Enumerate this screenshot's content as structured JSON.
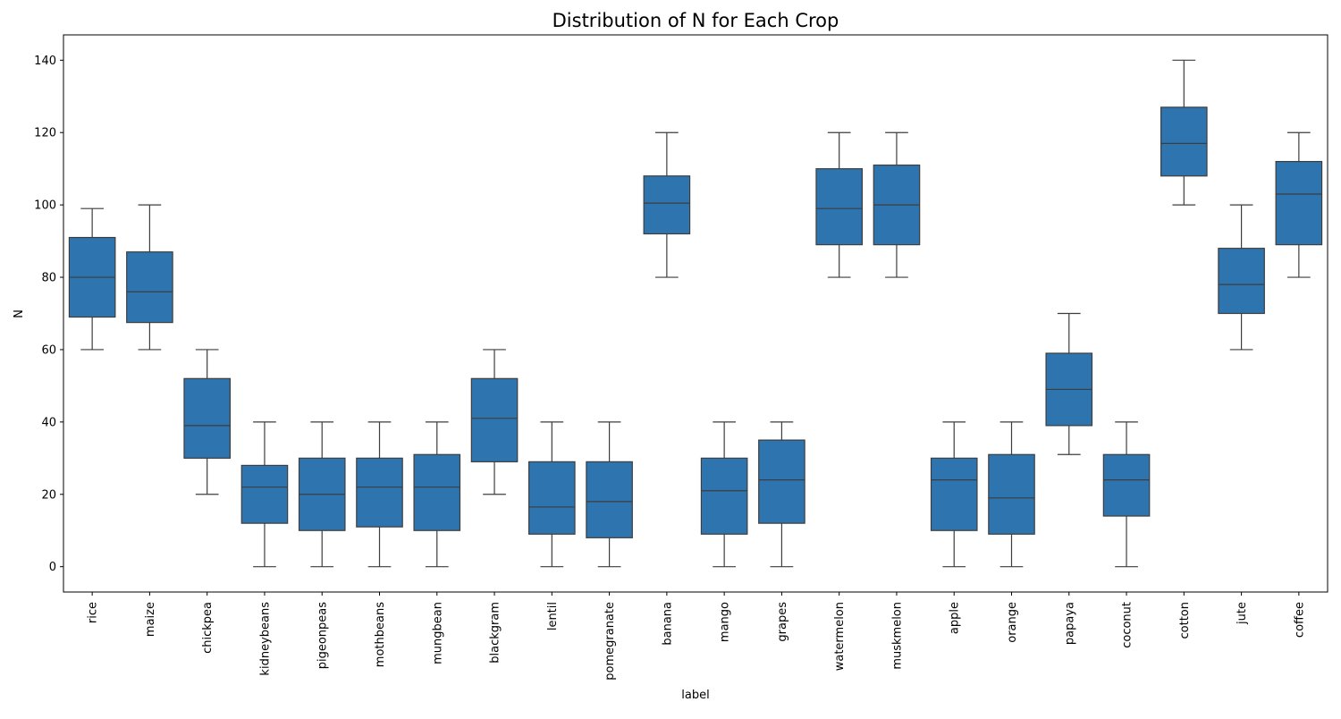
{
  "chart_data": {
    "type": "box",
    "title": "Distribution of N for Each Crop",
    "xlabel": "label",
    "ylabel": "N",
    "ylim": [
      -7,
      147
    ],
    "yticks": [
      0,
      20,
      40,
      60,
      80,
      100,
      120,
      140
    ],
    "grid": false,
    "legend": "none",
    "box_color": "#2e75b0",
    "line_color": "#3d3d3d",
    "categories": [
      "rice",
      "maize",
      "chickpea",
      "kidneybeans",
      "pigeonpeas",
      "mothbeans",
      "mungbean",
      "blackgram",
      "lentil",
      "pomegranate",
      "banana",
      "mango",
      "grapes",
      "watermelon",
      "muskmelon",
      "apple",
      "orange",
      "papaya",
      "coconut",
      "cotton",
      "jute",
      "coffee"
    ],
    "boxes": [
      {
        "label": "rice",
        "min": 60,
        "q1": 69,
        "median": 80,
        "q3": 91,
        "max": 99
      },
      {
        "label": "maize",
        "min": 60,
        "q1": 67.5,
        "median": 76,
        "q3": 87,
        "max": 100
      },
      {
        "label": "chickpea",
        "min": 20,
        "q1": 30,
        "median": 39,
        "q3": 52,
        "max": 60
      },
      {
        "label": "kidneybeans",
        "min": 0,
        "q1": 12,
        "median": 22,
        "q3": 28,
        "max": 40
      },
      {
        "label": "pigeonpeas",
        "min": 0,
        "q1": 10,
        "median": 20,
        "q3": 30,
        "max": 40
      },
      {
        "label": "mothbeans",
        "min": 0,
        "q1": 11,
        "median": 22,
        "q3": 30,
        "max": 40
      },
      {
        "label": "mungbean",
        "min": 0,
        "q1": 10,
        "median": 22,
        "q3": 31,
        "max": 40
      },
      {
        "label": "blackgram",
        "min": 20,
        "q1": 29,
        "median": 41,
        "q3": 52,
        "max": 60
      },
      {
        "label": "lentil",
        "min": 0,
        "q1": 9,
        "median": 16.5,
        "q3": 29,
        "max": 40
      },
      {
        "label": "pomegranate",
        "min": 0,
        "q1": 8,
        "median": 18,
        "q3": 29,
        "max": 40
      },
      {
        "label": "banana",
        "min": 80,
        "q1": 92,
        "median": 100.5,
        "q3": 108,
        "max": 120
      },
      {
        "label": "mango",
        "min": 0,
        "q1": 9,
        "median": 21,
        "q3": 30,
        "max": 40
      },
      {
        "label": "grapes",
        "min": 0,
        "q1": 12,
        "median": 24,
        "q3": 35,
        "max": 40
      },
      {
        "label": "watermelon",
        "min": 80,
        "q1": 89,
        "median": 99,
        "q3": 110,
        "max": 120
      },
      {
        "label": "muskmelon",
        "min": 80,
        "q1": 89,
        "median": 100,
        "q3": 111,
        "max": 120
      },
      {
        "label": "apple",
        "min": 0,
        "q1": 10,
        "median": 24,
        "q3": 30,
        "max": 40
      },
      {
        "label": "orange",
        "min": 0,
        "q1": 9,
        "median": 19,
        "q3": 31,
        "max": 40
      },
      {
        "label": "papaya",
        "min": 31,
        "q1": 39,
        "median": 49,
        "q3": 59,
        "max": 70
      },
      {
        "label": "coconut",
        "min": 0,
        "q1": 14,
        "median": 24,
        "q3": 31,
        "max": 40
      },
      {
        "label": "cotton",
        "min": 100,
        "q1": 108,
        "median": 117,
        "q3": 127,
        "max": 140
      },
      {
        "label": "jute",
        "min": 60,
        "q1": 70,
        "median": 78,
        "q3": 88,
        "max": 100
      },
      {
        "label": "coffee",
        "min": 80,
        "q1": 89,
        "median": 103,
        "q3": 112,
        "max": 120
      }
    ]
  }
}
